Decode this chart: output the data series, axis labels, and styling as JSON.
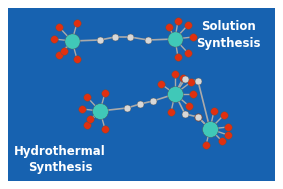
{
  "bg_color": "#1762b0",
  "outer_bg": "#ffffff",
  "text_color": "#ffffff",
  "label1": "Solution\nSynthesis",
  "label2": "Hydrothermal\nSynthesis",
  "cobalt_color": "#40c8b8",
  "oxygen_color": "#e03010",
  "carbon_color": "#d8d8d8",
  "bond_color": "#aaaaaa",
  "fontsize": 8.5
}
